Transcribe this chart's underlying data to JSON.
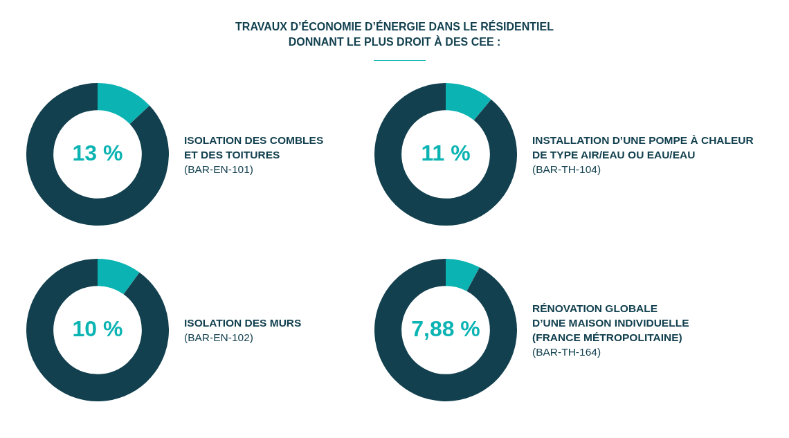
{
  "chart_data": [
    {
      "type": "other",
      "title": "TRAVAUX D’ÉCONOMIE D’ÉNERGIE DANS LE RÉSIDENTIEL\nDONNANT LE PLUS DROIT À DES CEE :"
    },
    {
      "type": "donut",
      "title": "ISOLATION DES COMBLES\nET DES TOITURES",
      "subtitle": "(BAR-EN-101)",
      "categories": [
        null,
        null
      ],
      "values": [
        13,
        87
      ],
      "colors": [
        "#0bb3b3",
        "#12404f"
      ],
      "value_labels": [
        "13 %",
        null
      ]
    },
    {
      "type": "donut",
      "title": "INSTALLATION D’UNE POMPE À CHALEUR\nDE TYPE AIR/EAU OU EAU/EAU",
      "subtitle": "(BAR-TH-104)",
      "categories": [
        null,
        null
      ],
      "values": [
        11,
        89
      ],
      "colors": [
        "#0bb3b3",
        "#12404f"
      ],
      "value_labels": [
        "11 %",
        null
      ]
    },
    {
      "type": "donut",
      "title": "ISOLATION DES MURS",
      "subtitle": "(BAR-EN-102)",
      "categories": [
        null,
        null
      ],
      "values": [
        10,
        90
      ],
      "colors": [
        "#0bb3b3",
        "#12404f"
      ],
      "value_labels": [
        "10 %",
        null
      ]
    },
    {
      "type": "donut",
      "title": "RÉNOVATION GLOBALE\nD’UNE MAISON INDIVIDUELLE\n(FRANCE MÉTROPOLITAINE)",
      "subtitle": "(BAR-TH-164)",
      "categories": [
        null,
        null
      ],
      "values": [
        7.88,
        92.12
      ],
      "colors": [
        "#0bb3b3",
        "#12404f"
      ],
      "value_labels": [
        "7,88 %",
        null
      ]
    }
  ]
}
